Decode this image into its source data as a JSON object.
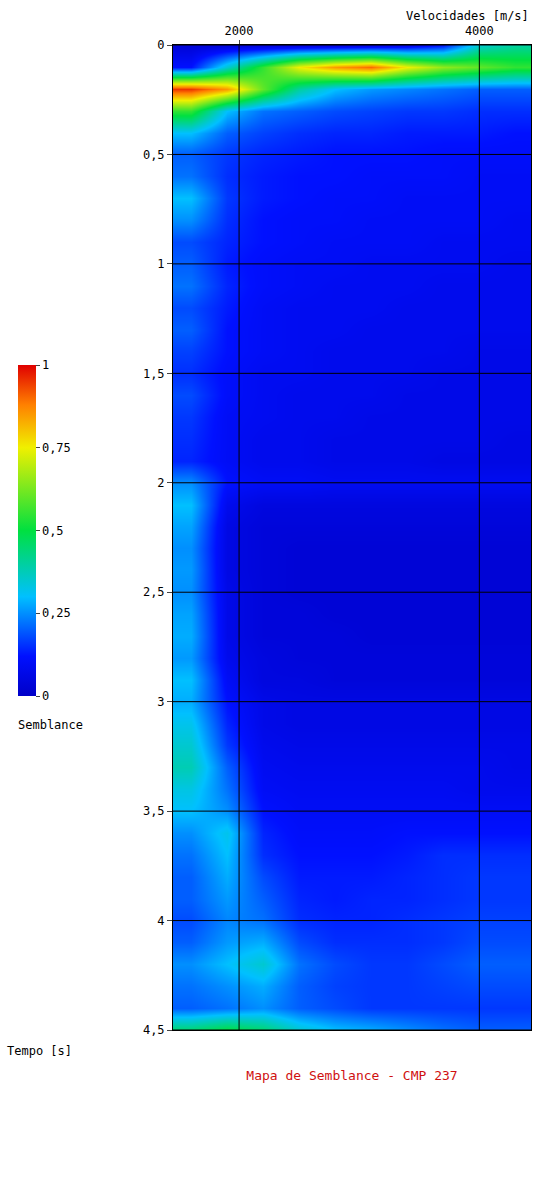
{
  "chart_data": {
    "type": "heatmap",
    "title": "Mapa de Semblance - CMP 237",
    "x_label": "Velocidades [m/s]",
    "y_label": "Tempo [s]",
    "x": [
      1600,
      1900,
      2200,
      2500,
      2800,
      3100,
      3400,
      3700,
      4000,
      4300
    ],
    "y": [
      0,
      0.1,
      0.2,
      0.3,
      0.4,
      0.5,
      0.6,
      0.7,
      0.8,
      0.9,
      1.0,
      1.1,
      1.2,
      1.3,
      1.4,
      1.5,
      1.6,
      1.7,
      1.8,
      1.9,
      2.0,
      2.1,
      2.2,
      2.3,
      2.4,
      2.5,
      2.6,
      2.7,
      2.8,
      2.9,
      3.0,
      3.1,
      3.2,
      3.3,
      3.4,
      3.5,
      3.6,
      3.7,
      3.8,
      3.9,
      4.0,
      4.1,
      4.2,
      4.3,
      4.4,
      4.5
    ],
    "cells": [
      [
        0.03,
        0.03,
        0.03,
        0.03,
        0.03,
        0.04,
        0.06,
        0.12,
        0.35,
        0.4
      ],
      [
        0.12,
        0.35,
        0.55,
        0.75,
        0.85,
        0.9,
        0.75,
        0.65,
        0.6,
        0.55
      ],
      [
        0.95,
        0.85,
        0.6,
        0.4,
        0.3,
        0.26,
        0.24,
        0.22,
        0.2,
        0.2
      ],
      [
        0.55,
        0.3,
        0.22,
        0.2,
        0.18,
        0.17,
        0.16,
        0.16,
        0.15,
        0.15
      ],
      [
        0.3,
        0.2,
        0.17,
        0.15,
        0.14,
        0.14,
        0.13,
        0.13,
        0.13,
        0.12
      ],
      [
        0.2,
        0.16,
        0.14,
        0.13,
        0.12,
        0.12,
        0.12,
        0.11,
        0.11,
        0.11
      ],
      [
        0.22,
        0.15,
        0.13,
        0.12,
        0.12,
        0.11,
        0.11,
        0.11,
        0.1,
        0.1
      ],
      [
        0.3,
        0.16,
        0.13,
        0.12,
        0.11,
        0.11,
        0.1,
        0.1,
        0.1,
        0.1
      ],
      [
        0.25,
        0.15,
        0.12,
        0.11,
        0.11,
        0.1,
        0.1,
        0.1,
        0.1,
        0.09
      ],
      [
        0.18,
        0.14,
        0.12,
        0.11,
        0.1,
        0.1,
        0.1,
        0.09,
        0.09,
        0.09
      ],
      [
        0.2,
        0.13,
        0.11,
        0.1,
        0.1,
        0.09,
        0.09,
        0.09,
        0.09,
        0.08
      ],
      [
        0.22,
        0.14,
        0.11,
        0.1,
        0.09,
        0.09,
        0.09,
        0.08,
        0.08,
        0.08
      ],
      [
        0.18,
        0.13,
        0.1,
        0.09,
        0.09,
        0.09,
        0.08,
        0.08,
        0.08,
        0.08
      ],
      [
        0.2,
        0.12,
        0.1,
        0.09,
        0.09,
        0.08,
        0.08,
        0.08,
        0.08,
        0.08
      ],
      [
        0.17,
        0.12,
        0.1,
        0.09,
        0.08,
        0.08,
        0.08,
        0.08,
        0.07,
        0.07
      ],
      [
        0.15,
        0.11,
        0.09,
        0.09,
        0.08,
        0.08,
        0.08,
        0.07,
        0.07,
        0.07
      ],
      [
        0.18,
        0.11,
        0.09,
        0.08,
        0.08,
        0.08,
        0.07,
        0.07,
        0.07,
        0.07
      ],
      [
        0.16,
        0.1,
        0.09,
        0.08,
        0.08,
        0.07,
        0.07,
        0.07,
        0.07,
        0.07
      ],
      [
        0.15,
        0.1,
        0.08,
        0.08,
        0.07,
        0.07,
        0.07,
        0.07,
        0.07,
        0.06
      ],
      [
        0.14,
        0.1,
        0.08,
        0.08,
        0.07,
        0.07,
        0.07,
        0.06,
        0.06,
        0.06
      ],
      [
        0.25,
        0.12,
        0.1,
        0.1,
        0.09,
        0.09,
        0.09,
        0.09,
        0.09,
        0.09
      ],
      [
        0.3,
        0.08,
        0.05,
        0.05,
        0.05,
        0.05,
        0.05,
        0.05,
        0.05,
        0.05
      ],
      [
        0.27,
        0.06,
        0.04,
        0.04,
        0.04,
        0.04,
        0.04,
        0.04,
        0.04,
        0.04
      ],
      [
        0.25,
        0.06,
        0.04,
        0.03,
        0.03,
        0.03,
        0.03,
        0.03,
        0.03,
        0.03
      ],
      [
        0.26,
        0.06,
        0.04,
        0.03,
        0.03,
        0.03,
        0.03,
        0.03,
        0.03,
        0.03
      ],
      [
        0.25,
        0.07,
        0.04,
        0.03,
        0.03,
        0.03,
        0.03,
        0.03,
        0.03,
        0.03
      ],
      [
        0.27,
        0.07,
        0.04,
        0.04,
        0.03,
        0.03,
        0.03,
        0.03,
        0.03,
        0.03
      ],
      [
        0.28,
        0.07,
        0.04,
        0.04,
        0.04,
        0.03,
        0.03,
        0.03,
        0.03,
        0.03
      ],
      [
        0.26,
        0.08,
        0.05,
        0.04,
        0.04,
        0.04,
        0.04,
        0.04,
        0.04,
        0.04
      ],
      [
        0.3,
        0.1,
        0.05,
        0.05,
        0.04,
        0.04,
        0.04,
        0.04,
        0.04,
        0.04
      ],
      [
        0.28,
        0.12,
        0.07,
        0.06,
        0.06,
        0.06,
        0.06,
        0.06,
        0.06,
        0.06
      ],
      [
        0.32,
        0.14,
        0.07,
        0.06,
        0.06,
        0.06,
        0.06,
        0.06,
        0.06,
        0.06
      ],
      [
        0.35,
        0.16,
        0.08,
        0.07,
        0.07,
        0.07,
        0.07,
        0.07,
        0.07,
        0.07
      ],
      [
        0.38,
        0.2,
        0.09,
        0.08,
        0.08,
        0.08,
        0.08,
        0.08,
        0.08,
        0.07
      ],
      [
        0.33,
        0.22,
        0.1,
        0.09,
        0.09,
        0.09,
        0.09,
        0.09,
        0.08,
        0.08
      ],
      [
        0.3,
        0.25,
        0.12,
        0.1,
        0.1,
        0.1,
        0.1,
        0.1,
        0.1,
        0.1
      ],
      [
        0.25,
        0.32,
        0.14,
        0.11,
        0.11,
        0.11,
        0.12,
        0.12,
        0.12,
        0.12
      ],
      [
        0.22,
        0.3,
        0.15,
        0.12,
        0.12,
        0.12,
        0.13,
        0.15,
        0.15,
        0.15
      ],
      [
        0.2,
        0.28,
        0.18,
        0.13,
        0.13,
        0.13,
        0.14,
        0.15,
        0.16,
        0.16
      ],
      [
        0.2,
        0.26,
        0.2,
        0.14,
        0.13,
        0.14,
        0.14,
        0.15,
        0.16,
        0.16
      ],
      [
        0.18,
        0.24,
        0.22,
        0.15,
        0.14,
        0.14,
        0.15,
        0.16,
        0.17,
        0.17
      ],
      [
        0.2,
        0.26,
        0.28,
        0.18,
        0.15,
        0.15,
        0.15,
        0.16,
        0.18,
        0.18
      ],
      [
        0.25,
        0.3,
        0.35,
        0.22,
        0.18,
        0.16,
        0.16,
        0.18,
        0.2,
        0.2
      ],
      [
        0.22,
        0.25,
        0.28,
        0.2,
        0.17,
        0.16,
        0.16,
        0.17,
        0.18,
        0.18
      ],
      [
        0.2,
        0.22,
        0.25,
        0.2,
        0.18,
        0.16,
        0.16,
        0.16,
        0.16,
        0.16
      ],
      [
        0.45,
        0.5,
        0.45,
        0.35,
        0.3,
        0.28,
        0.25,
        0.22,
        0.2,
        0.2
      ]
    ],
    "xlim": [
      1450,
      4430
    ],
    "xticks": [
      2000,
      4000
    ],
    "ylim": [
      4.5,
      0
    ],
    "yticks": [
      0,
      {
        "value": 0.5,
        "label": "0,5"
      },
      1,
      {
        "value": 1.5,
        "label": "1,5"
      },
      2,
      {
        "value": 2.5,
        "label": "2,5"
      },
      3,
      {
        "value": 3.5,
        "label": "3,5"
      },
      4,
      {
        "value": 4.5,
        "label": "4,5"
      }
    ],
    "colorbar": {
      "title": "Semblance",
      "range": [
        0,
        1
      ],
      "ticks": [
        0,
        {
          "value": 0.25,
          "label": "0,25"
        },
        {
          "value": 0.5,
          "label": "0,5"
        },
        {
          "value": 0.75,
          "label": "0,75"
        },
        1
      ]
    },
    "grid": true
  }
}
